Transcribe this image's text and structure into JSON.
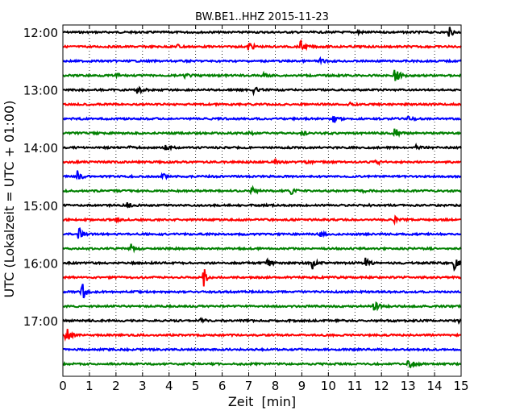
{
  "chart_data": {
    "type": "line",
    "title": "BW.BE1..HHZ 2015-11-23",
    "xlabel": "Zeit  [min]",
    "ylabel": "UTC (Lokalzeit = UTC + 01:00)",
    "xlim": [
      0,
      15
    ],
    "x_ticks": [
      "0",
      "1",
      "2",
      "3",
      "4",
      "5",
      "6",
      "7",
      "8",
      "9",
      "10",
      "11",
      "12",
      "13",
      "14",
      "15"
    ],
    "y_tick_labels": [
      "12:00",
      "13:00",
      "14:00",
      "15:00",
      "16:00",
      "17:00"
    ],
    "trace_colors": [
      "#000000",
      "#ff0000",
      "#0000ff",
      "#008000"
    ],
    "traces": [
      {
        "row": 0,
        "events": [
          {
            "t": 11.1,
            "amp": 0.3
          },
          {
            "t": 14.55,
            "amp": 0.7
          }
        ]
      },
      {
        "row": 1,
        "events": [
          {
            "t": 4.3,
            "amp": 0.4
          },
          {
            "t": 7.0,
            "amp": 0.8
          },
          {
            "t": 8.95,
            "amp": 0.8
          }
        ]
      },
      {
        "row": 2,
        "events": [
          {
            "t": 9.7,
            "amp": 0.3
          }
        ]
      },
      {
        "row": 3,
        "events": [
          {
            "t": 2.0,
            "amp": 0.3
          },
          {
            "t": 4.6,
            "amp": 0.3
          },
          {
            "t": 7.5,
            "amp": 0.5
          },
          {
            "t": 12.5,
            "amp": 1.4
          }
        ]
      },
      {
        "row": 4,
        "events": [
          {
            "t": 2.8,
            "amp": 0.8
          },
          {
            "t": 7.2,
            "amp": 0.5
          }
        ]
      },
      {
        "row": 5,
        "events": [
          {
            "t": 10.7,
            "amp": 0.4
          }
        ]
      },
      {
        "row": 6,
        "events": [
          {
            "t": 10.2,
            "amp": 0.6
          },
          {
            "t": 13.0,
            "amp": 0.6
          }
        ]
      },
      {
        "row": 7,
        "events": [
          {
            "t": 7.0,
            "amp": 0.3
          },
          {
            "t": 9.0,
            "amp": 0.3
          },
          {
            "t": 12.5,
            "amp": 1.0
          }
        ]
      },
      {
        "row": 8,
        "events": [
          {
            "t": 2.5,
            "amp": 0.3
          },
          {
            "t": 3.8,
            "amp": 0.6
          },
          {
            "t": 13.3,
            "amp": 0.3
          }
        ]
      },
      {
        "row": 9,
        "events": [
          {
            "t": 8.0,
            "amp": 0.3
          },
          {
            "t": 9.1,
            "amp": 0.5
          },
          {
            "t": 11.8,
            "amp": 0.4
          }
        ]
      },
      {
        "row": 10,
        "events": [
          {
            "t": 0.55,
            "amp": 0.8
          },
          {
            "t": 3.75,
            "amp": 0.4
          }
        ]
      },
      {
        "row": 11,
        "events": [
          {
            "t": 7.1,
            "amp": 0.6
          },
          {
            "t": 8.6,
            "amp": 0.6
          },
          {
            "t": 11.3,
            "amp": 0.2
          }
        ]
      },
      {
        "row": 12,
        "events": [
          {
            "t": 2.4,
            "amp": 0.5
          },
          {
            "t": 11.3,
            "amp": 0.3
          }
        ]
      },
      {
        "row": 13,
        "events": [
          {
            "t": 2.0,
            "amp": 0.3
          },
          {
            "t": 12.5,
            "amp": 0.4
          }
        ]
      },
      {
        "row": 14,
        "events": [
          {
            "t": 0.6,
            "amp": 1.0
          },
          {
            "t": 9.7,
            "amp": 0.3
          }
        ]
      },
      {
        "row": 15,
        "events": [
          {
            "t": 2.5,
            "amp": 1.0
          }
        ]
      },
      {
        "row": 16,
        "events": [
          {
            "t": 7.7,
            "amp": 0.8
          },
          {
            "t": 9.4,
            "amp": 0.8
          },
          {
            "t": 11.4,
            "amp": 0.8
          },
          {
            "t": 14.75,
            "amp": 1.0
          }
        ]
      },
      {
        "row": 17,
        "events": [
          {
            "t": 5.3,
            "amp": 1.4
          }
        ]
      },
      {
        "row": 18,
        "events": [
          {
            "t": 0.7,
            "amp": 1.6
          }
        ]
      },
      {
        "row": 19,
        "events": [
          {
            "t": 11.7,
            "amp": 1.0
          }
        ]
      },
      {
        "row": 20,
        "events": [
          {
            "t": 5.2,
            "amp": 0.3
          },
          {
            "t": 14.9,
            "amp": 0.3
          }
        ]
      },
      {
        "row": 21,
        "events": [
          {
            "t": 0.1,
            "amp": 1.4
          }
        ]
      },
      {
        "row": 22,
        "events": []
      },
      {
        "row": 23,
        "events": [
          {
            "t": 13.0,
            "amp": 1.0
          }
        ]
      }
    ],
    "grid": "vertical-dotted"
  }
}
